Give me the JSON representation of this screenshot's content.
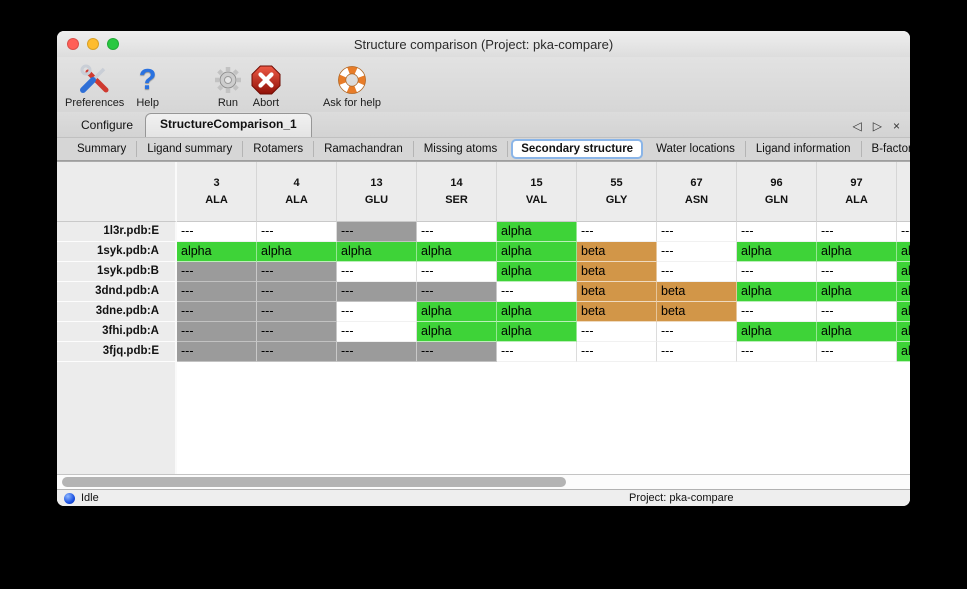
{
  "window": {
    "title": "Structure comparison (Project: pka-compare)",
    "traffic_lights": {
      "close": "#ff5f57",
      "minimize": "#febc2e",
      "zoom": "#28c840"
    }
  },
  "toolbar": {
    "buttons": [
      {
        "id": "preferences",
        "label": "Preferences",
        "icon": "tools-icon"
      },
      {
        "id": "help",
        "label": "Help",
        "icon": "question-mark-icon"
      },
      {
        "id": "run",
        "label": "Run",
        "icon": "gear-icon"
      },
      {
        "id": "abort",
        "label": "Abort",
        "icon": "abort-stop-icon"
      },
      {
        "id": "ask-for-help",
        "label": "Ask for help",
        "icon": "life-ring-icon"
      }
    ]
  },
  "tabs": {
    "items": [
      {
        "label": "Configure",
        "selected": false
      },
      {
        "label": "StructureComparison_1",
        "selected": true
      }
    ],
    "nav": {
      "prev": "◁",
      "next": "▷",
      "close": "×"
    }
  },
  "subtabs": {
    "items": [
      {
        "label": "Summary",
        "selected": false
      },
      {
        "label": "Ligand summary",
        "selected": false
      },
      {
        "label": "Rotamers",
        "selected": false
      },
      {
        "label": "Ramachandran",
        "selected": false
      },
      {
        "label": "Missing atoms",
        "selected": false
      },
      {
        "label": "Secondary structure",
        "selected": true
      },
      {
        "label": "Water locations",
        "selected": false
      },
      {
        "label": "Ligand information",
        "selected": false
      },
      {
        "label": "B-factors",
        "selected": false
      }
    ],
    "nav": {
      "prev": "◁",
      "next": "▷"
    }
  },
  "table": {
    "columns": [
      {
        "residue_number": "3",
        "residue_name": "ALA"
      },
      {
        "residue_number": "4",
        "residue_name": "ALA"
      },
      {
        "residue_number": "13",
        "residue_name": "GLU"
      },
      {
        "residue_number": "14",
        "residue_name": "SER"
      },
      {
        "residue_number": "15",
        "residue_name": "VAL"
      },
      {
        "residue_number": "55",
        "residue_name": "GLY"
      },
      {
        "residue_number": "67",
        "residue_name": "ASN"
      },
      {
        "residue_number": "96",
        "residue_name": "GLN"
      },
      {
        "residue_number": "97",
        "residue_name": "ALA"
      },
      {
        "residue_number": "",
        "residue_name": ""
      }
    ],
    "rows": [
      {
        "label": "1l3r.pdb:E",
        "cells": [
          {
            "text": "---",
            "style": "blank"
          },
          {
            "text": "---",
            "style": "blank"
          },
          {
            "text": "---",
            "style": "gap"
          },
          {
            "text": "---",
            "style": "blank"
          },
          {
            "text": "alpha",
            "style": "alpha"
          },
          {
            "text": "---",
            "style": "blank"
          },
          {
            "text": "---",
            "style": "blank"
          },
          {
            "text": "---",
            "style": "blank"
          },
          {
            "text": "---",
            "style": "blank"
          },
          {
            "text": "---",
            "style": "blank"
          }
        ]
      },
      {
        "label": "1syk.pdb:A",
        "cells": [
          {
            "text": "alpha",
            "style": "alpha"
          },
          {
            "text": "alpha",
            "style": "alpha"
          },
          {
            "text": "alpha",
            "style": "alpha"
          },
          {
            "text": "alpha",
            "style": "alpha"
          },
          {
            "text": "alpha",
            "style": "alpha"
          },
          {
            "text": "beta",
            "style": "beta"
          },
          {
            "text": "---",
            "style": "blank"
          },
          {
            "text": "alpha",
            "style": "alpha"
          },
          {
            "text": "alpha",
            "style": "alpha"
          },
          {
            "text": "alpha",
            "style": "alpha"
          }
        ]
      },
      {
        "label": "1syk.pdb:B",
        "cells": [
          {
            "text": "---",
            "style": "gap"
          },
          {
            "text": "---",
            "style": "gap"
          },
          {
            "text": "---",
            "style": "blank"
          },
          {
            "text": "---",
            "style": "blank"
          },
          {
            "text": "alpha",
            "style": "alpha"
          },
          {
            "text": "beta",
            "style": "beta"
          },
          {
            "text": "---",
            "style": "blank"
          },
          {
            "text": "---",
            "style": "blank"
          },
          {
            "text": "---",
            "style": "blank"
          },
          {
            "text": "alpha",
            "style": "alpha"
          }
        ]
      },
      {
        "label": "3dnd.pdb:A",
        "cells": [
          {
            "text": "---",
            "style": "gap"
          },
          {
            "text": "---",
            "style": "gap"
          },
          {
            "text": "---",
            "style": "gap"
          },
          {
            "text": "---",
            "style": "gap"
          },
          {
            "text": "---",
            "style": "blank"
          },
          {
            "text": "beta",
            "style": "beta"
          },
          {
            "text": "beta",
            "style": "beta"
          },
          {
            "text": "alpha",
            "style": "alpha"
          },
          {
            "text": "alpha",
            "style": "alpha"
          },
          {
            "text": "alpha",
            "style": "alpha"
          }
        ]
      },
      {
        "label": "3dne.pdb:A",
        "cells": [
          {
            "text": "---",
            "style": "gap"
          },
          {
            "text": "---",
            "style": "gap"
          },
          {
            "text": "---",
            "style": "blank"
          },
          {
            "text": "alpha",
            "style": "alpha"
          },
          {
            "text": "alpha",
            "style": "alpha"
          },
          {
            "text": "beta",
            "style": "beta"
          },
          {
            "text": "beta",
            "style": "beta"
          },
          {
            "text": "---",
            "style": "blank"
          },
          {
            "text": "---",
            "style": "blank"
          },
          {
            "text": "alpha",
            "style": "alpha"
          }
        ]
      },
      {
        "label": "3fhi.pdb:A",
        "cells": [
          {
            "text": "---",
            "style": "gap"
          },
          {
            "text": "---",
            "style": "gap"
          },
          {
            "text": "---",
            "style": "blank"
          },
          {
            "text": "alpha",
            "style": "alpha"
          },
          {
            "text": "alpha",
            "style": "alpha"
          },
          {
            "text": "---",
            "style": "blank"
          },
          {
            "text": "---",
            "style": "blank"
          },
          {
            "text": "alpha",
            "style": "alpha"
          },
          {
            "text": "alpha",
            "style": "alpha"
          },
          {
            "text": "alpha",
            "style": "alpha"
          }
        ]
      },
      {
        "label": "3fjq.pdb:E",
        "cells": [
          {
            "text": "---",
            "style": "gap"
          },
          {
            "text": "---",
            "style": "gap"
          },
          {
            "text": "---",
            "style": "gap"
          },
          {
            "text": "---",
            "style": "gap"
          },
          {
            "text": "---",
            "style": "blank"
          },
          {
            "text": "---",
            "style": "blank"
          },
          {
            "text": "---",
            "style": "blank"
          },
          {
            "text": "---",
            "style": "blank"
          },
          {
            "text": "---",
            "style": "blank"
          },
          {
            "text": "alpha",
            "style": "alpha"
          }
        ]
      }
    ]
  },
  "statusbar": {
    "status": "Idle",
    "project": "Project: pka-compare"
  },
  "colors": {
    "alpha_helix": "#3ed338",
    "beta_sheet": "#d29648",
    "not_modeled": "#9b9b9b"
  }
}
